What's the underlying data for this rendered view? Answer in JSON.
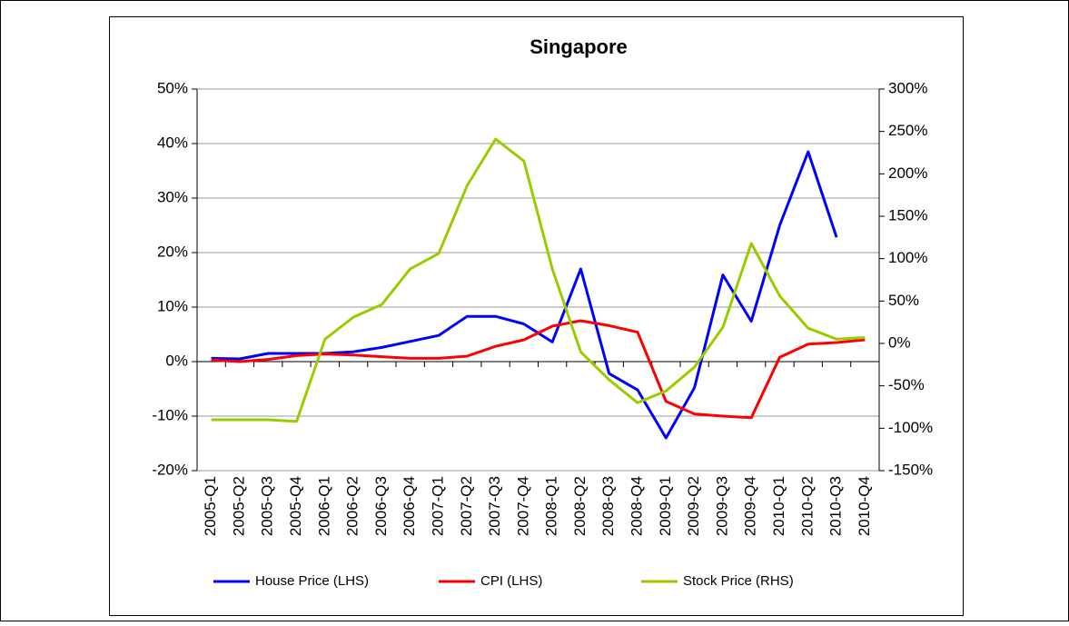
{
  "chart_data": {
    "type": "line",
    "title": "Singapore",
    "categories": [
      "2005-Q1",
      "2005-Q2",
      "2005-Q3",
      "2005-Q4",
      "2006-Q1",
      "2006-Q2",
      "2006-Q3",
      "2006-Q4",
      "2007-Q1",
      "2007-Q2",
      "2007-Q3",
      "2007-Q4",
      "2008-Q1",
      "2008-Q2",
      "2008-Q3",
      "2008-Q4",
      "2009-Q1",
      "2009-Q2",
      "2009-Q3",
      "2009-Q4",
      "2010-Q1",
      "2010-Q2",
      "2010-Q3",
      "2010-Q4"
    ],
    "series": [
      {
        "name": "House Price (LHS)",
        "color": "#0000ff",
        "values": [
          0.6,
          0.5,
          1.5,
          1.5,
          1.5,
          1.8,
          2.6,
          3.7,
          4.8,
          8.3,
          8.3,
          6.9,
          3.6,
          17.0,
          -2.2,
          -5.2,
          -14.0,
          -4.8,
          15.9,
          7.4,
          25.0,
          38.5,
          22.8,
          null
        ]
      },
      {
        "name": "CPI (LHS)",
        "color": "#ff0000",
        "values": [
          0.3,
          0.0,
          0.4,
          1.1,
          1.4,
          1.2,
          0.9,
          0.6,
          0.6,
          1.0,
          2.8,
          4.0,
          6.5,
          7.5,
          6.6,
          5.4,
          -7.3,
          -9.6,
          -10.0,
          -10.3,
          0.8,
          3.2,
          3.5,
          4.0
        ]
      },
      {
        "name": "Stock Price (RHS)",
        "color": "#99cc00",
        "axis": "y2",
        "values": [
          -90,
          -90,
          -90,
          -92,
          5,
          31,
          46,
          88,
          106,
          186,
          241,
          215,
          88,
          -10,
          -43,
          -70,
          -56,
          -28,
          19,
          118,
          56,
          18,
          5,
          7
        ]
      }
    ],
    "ylim": [
      -20,
      50
    ],
    "yticks": [
      {
        "value": -20,
        "label": "-20%"
      },
      {
        "value": -10,
        "label": "-10%"
      },
      {
        "value": 0,
        "label": "0%"
      },
      {
        "value": 10,
        "label": "10%"
      },
      {
        "value": 20,
        "label": "20%"
      },
      {
        "value": 30,
        "label": "30%"
      },
      {
        "value": 40,
        "label": "40%"
      },
      {
        "value": 50,
        "label": "50%"
      }
    ],
    "y2lim": [
      -150,
      300
    ],
    "y2ticks": [
      {
        "value": -150,
        "label": "-150%"
      },
      {
        "value": -100,
        "label": "-100%"
      },
      {
        "value": -50,
        "label": "-50%"
      },
      {
        "value": 0,
        "label": "0%"
      },
      {
        "value": 50,
        "label": "50%"
      },
      {
        "value": 100,
        "label": "100%"
      },
      {
        "value": 150,
        "label": "150%"
      },
      {
        "value": 200,
        "label": "200%"
      },
      {
        "value": 250,
        "label": "250%"
      },
      {
        "value": 300,
        "label": "300%"
      }
    ],
    "grid": true,
    "legend": "bottom"
  }
}
